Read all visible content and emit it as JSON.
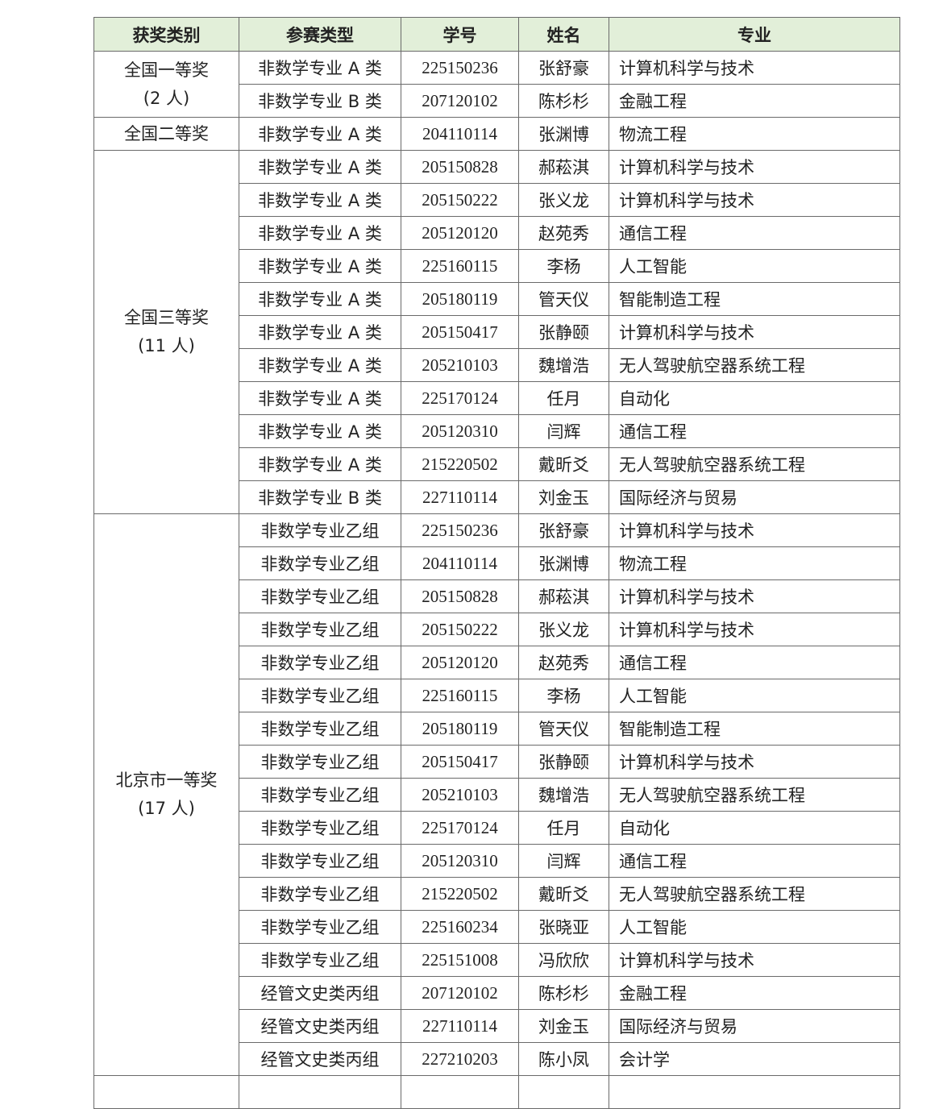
{
  "headers": [
    "获奖类别",
    "参赛类型",
    "学号",
    "姓名",
    "专业"
  ],
  "colors": {
    "header_bg": "#e2efd9",
    "border": "#6a6a6a"
  },
  "groups": [
    {
      "award": "全国一等奖",
      "count": "(2 人)",
      "rows": [
        [
          "非数学专业 A 类",
          "225150236",
          "张舒豪",
          "计算机科学与技术"
        ],
        [
          "非数学专业 B 类",
          "207120102",
          "陈杉杉",
          "金融工程"
        ]
      ]
    },
    {
      "award": "全国二等奖",
      "count": "",
      "rows": [
        [
          "非数学专业 A 类",
          "204110114",
          "张渊博",
          "物流工程"
        ]
      ]
    },
    {
      "award": "全国三等奖",
      "count": "(11 人)",
      "rows": [
        [
          "非数学专业 A 类",
          "205150828",
          "郝菘淇",
          "计算机科学与技术"
        ],
        [
          "非数学专业 A 类",
          "205150222",
          "张义龙",
          "计算机科学与技术"
        ],
        [
          "非数学专业 A 类",
          "205120120",
          "赵苑秀",
          "通信工程"
        ],
        [
          "非数学专业 A 类",
          "225160115",
          "李杨",
          "人工智能"
        ],
        [
          "非数学专业 A 类",
          "205180119",
          "管天仪",
          "智能制造工程"
        ],
        [
          "非数学专业 A 类",
          "205150417",
          "张静颐",
          "计算机科学与技术"
        ],
        [
          "非数学专业 A 类",
          "205210103",
          "魏增浩",
          "无人驾驶航空器系统工程"
        ],
        [
          "非数学专业 A 类",
          "225170124",
          "任月",
          "自动化"
        ],
        [
          "非数学专业 A 类",
          "205120310",
          "闫辉",
          "通信工程"
        ],
        [
          "非数学专业 A 类",
          "215220502",
          "戴昕爻",
          "无人驾驶航空器系统工程"
        ],
        [
          "非数学专业 B 类",
          "227110114",
          "刘金玉",
          "国际经济与贸易"
        ]
      ]
    },
    {
      "award": "北京市一等奖",
      "count": "(17 人)",
      "rows": [
        [
          "非数学专业乙组",
          "225150236",
          "张舒豪",
          "计算机科学与技术"
        ],
        [
          "非数学专业乙组",
          "204110114",
          "张渊博",
          "物流工程"
        ],
        [
          "非数学专业乙组",
          "205150828",
          "郝菘淇",
          "计算机科学与技术"
        ],
        [
          "非数学专业乙组",
          "205150222",
          "张义龙",
          "计算机科学与技术"
        ],
        [
          "非数学专业乙组",
          "205120120",
          "赵苑秀",
          "通信工程"
        ],
        [
          "非数学专业乙组",
          "225160115",
          "李杨",
          "人工智能"
        ],
        [
          "非数学专业乙组",
          "205180119",
          "管天仪",
          "智能制造工程"
        ],
        [
          "非数学专业乙组",
          "205150417",
          "张静颐",
          "计算机科学与技术"
        ],
        [
          "非数学专业乙组",
          "205210103",
          "魏增浩",
          "无人驾驶航空器系统工程"
        ],
        [
          "非数学专业乙组",
          "225170124",
          "任月",
          "自动化"
        ],
        [
          "非数学专业乙组",
          "205120310",
          "闫辉",
          "通信工程"
        ],
        [
          "非数学专业乙组",
          "215220502",
          "戴昕爻",
          "无人驾驶航空器系统工程"
        ],
        [
          "非数学专业乙组",
          "225160234",
          "张晓亚",
          "人工智能"
        ],
        [
          "非数学专业乙组",
          "225151008",
          "冯欣欣",
          "计算机科学与技术"
        ],
        [
          "经管文史类丙组",
          "207120102",
          "陈杉杉",
          "金融工程"
        ],
        [
          "经管文史类丙组",
          "227110114",
          "刘金玉",
          "国际经济与贸易"
        ],
        [
          "经管文史类丙组",
          "227210203",
          "陈小凤",
          "会计学"
        ]
      ]
    }
  ]
}
